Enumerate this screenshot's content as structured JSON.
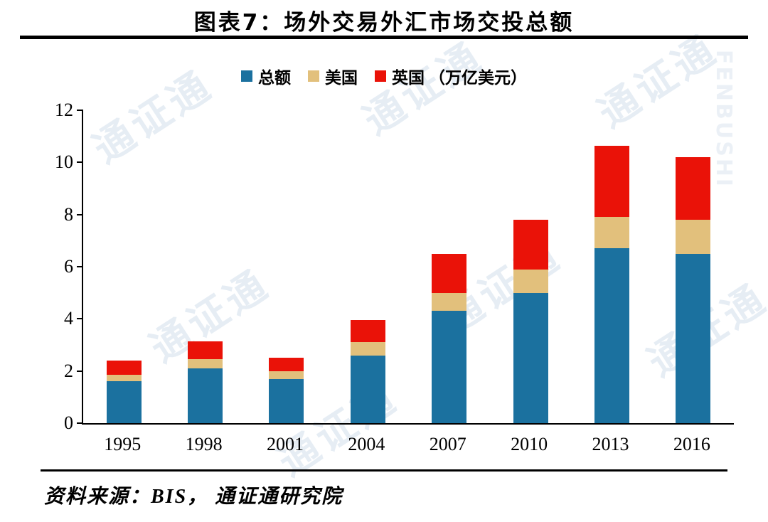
{
  "title": "图表7：场外交易外汇市场交投总额",
  "source": "资料来源：BIS，  通证通研究院",
  "watermark": {
    "text": "通证通",
    "subtext": "FENBUSHI"
  },
  "chart_data": {
    "type": "bar",
    "stacked": true,
    "title": "图表7：场外交易外汇市场交投总额",
    "unit_label": "（万亿美元）",
    "categories": [
      "1995",
      "1998",
      "2001",
      "2004",
      "2007",
      "2010",
      "2013",
      "2016"
    ],
    "series": [
      {
        "name": "总额",
        "color": "#1b719f",
        "values": [
          1.6,
          2.1,
          1.7,
          2.6,
          4.3,
          5.0,
          6.7,
          6.5
        ]
      },
      {
        "name": "美国",
        "color": "#e2c07c",
        "values": [
          0.25,
          0.35,
          0.3,
          0.5,
          0.7,
          0.9,
          1.2,
          1.3
        ]
      },
      {
        "name": "英国",
        "color": "#ea1208",
        "values": [
          0.55,
          0.7,
          0.5,
          0.85,
          1.5,
          1.9,
          2.75,
          2.4
        ]
      }
    ],
    "ylim": [
      0,
      12
    ],
    "ytick_step": 2,
    "grid": false,
    "legend_position": "top"
  }
}
